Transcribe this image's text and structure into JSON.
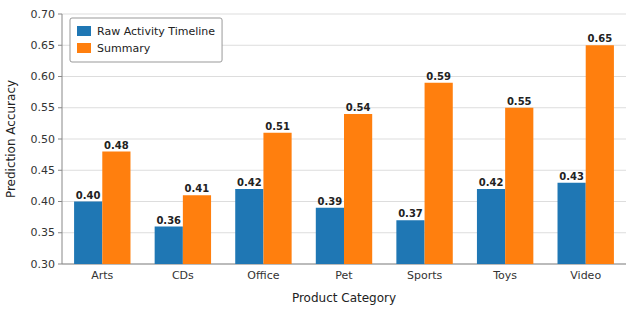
{
  "chart_data": {
    "type": "bar",
    "categories": [
      "Arts",
      "CDs",
      "Office",
      "Pet",
      "Sports",
      "Toys",
      "Video"
    ],
    "series": [
      {
        "name": "Raw Activity Timeline",
        "color": "#1f77b4",
        "values": [
          0.4,
          0.36,
          0.42,
          0.39,
          0.37,
          0.42,
          0.43
        ],
        "value_labels": [
          "0.40",
          "0.36",
          "0.42",
          "0.39",
          "0.37",
          "0.42",
          "0.43"
        ]
      },
      {
        "name": "Summary",
        "color": "#ff7f0e",
        "values": [
          0.48,
          0.41,
          0.51,
          0.54,
          0.59,
          0.55,
          0.65
        ],
        "value_labels": [
          "0.48",
          "0.41",
          "0.51",
          "0.54",
          "0.59",
          "0.55",
          "0.65"
        ]
      }
    ],
    "xlabel": "Product Category",
    "ylabel": "Prediction Accuracy",
    "ylim": [
      0.3,
      0.7
    ],
    "yticks": [
      {
        "value": 0.3,
        "label": "0.30"
      },
      0.35,
      {
        "value": 0.4,
        "label": "0.40"
      },
      0.45,
      {
        "value": 0.5,
        "label": "0.50"
      },
      0.55,
      {
        "value": 0.6,
        "label": "0.60"
      },
      0.65,
      {
        "value": 0.7,
        "label": "0.70"
      }
    ],
    "grid": true,
    "legend": "upper-left",
    "data_labels": true
  }
}
